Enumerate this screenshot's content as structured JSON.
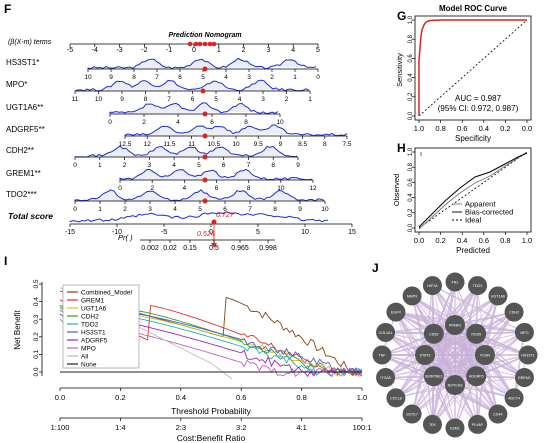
{
  "panels": {
    "F": "F",
    "G": "G",
    "H": "H",
    "I": "I",
    "J": "J"
  },
  "nomogram": {
    "title": "Prediction Nomogram",
    "points_label": "(β(X-m) terms",
    "points_ticks": [
      "-5",
      "-4",
      "-3",
      "-2",
      "-1",
      "0",
      "1",
      "2",
      "3",
      "4",
      "5"
    ],
    "variables": [
      {
        "name": "HS3ST1*",
        "ticks": [
          "10",
          "9",
          "8",
          "7",
          "6",
          "5",
          "4",
          "3",
          "2",
          "1",
          "0"
        ]
      },
      {
        "name": "MPO*",
        "ticks": [
          "11",
          "10",
          "9",
          "8",
          "7",
          "6",
          "5",
          "4",
          "3",
          "2",
          "1"
        ]
      },
      {
        "name": "UGT1A6**",
        "ticks": [
          "0",
          "2",
          "4",
          "6",
          "8",
          "10"
        ]
      },
      {
        "name": "ADGRF5**",
        "ticks": [
          "12.5",
          "12",
          "11.5",
          "11",
          "10.5",
          "10",
          "9.5",
          "9",
          "8.5",
          "8",
          "7.5"
        ]
      },
      {
        "name": "CDH2**",
        "ticks": [
          "0",
          "1",
          "2",
          "3",
          "4",
          "5",
          "6",
          "7",
          "8",
          "9"
        ]
      },
      {
        "name": "GREM1**",
        "ticks": [
          "0",
          "2",
          "4",
          "6",
          "8",
          "10",
          "12"
        ]
      },
      {
        "name": "TDO2***",
        "ticks": [
          "0",
          "1",
          "2",
          "3",
          "4",
          "5",
          "6",
          "7",
          "8",
          "9",
          "10"
        ]
      }
    ],
    "total_label": "Total score",
    "total_ticks": [
      "-15",
      "-10",
      "-5",
      "0",
      "5",
      "10",
      "15"
    ],
    "total_value": "0.727",
    "pr_label": "Pr( )",
    "pr_ticks": [
      "0.002",
      "0.02",
      "0.15",
      "0.5",
      "0.965",
      "0.998"
    ],
    "pr_value": "0.524"
  },
  "roc": {
    "title": "Model ROC Curve",
    "ylabel": "Sensitivity",
    "xlabel": "Specificity",
    "yticks": [
      "0.0",
      "0.2",
      "0.4",
      "0.6",
      "0.8",
      "1.0"
    ],
    "xticks": [
      "1.0",
      "0.8",
      "0.6",
      "0.4",
      "0.2",
      "0.0"
    ],
    "auc": "AUC = 0.987",
    "ci": "(95% CI: 0.972, 0.987)"
  },
  "calibration": {
    "ylabel": "Observed",
    "xlabel": "Predicted",
    "yticks": [
      "0.0",
      "0.2",
      "0.4",
      "0.6",
      "0.8",
      "1.0"
    ],
    "xticks": [
      "0.0",
      "0.2",
      "0.4",
      "0.6",
      "0.8",
      "1.0"
    ],
    "legend": [
      "Apparent",
      "Bias-corrected",
      "Ideal"
    ]
  },
  "dca": {
    "ylabel": "Net Benefit",
    "xlabel": "Threshold Probability",
    "cost_label": "Cost:Benefit Ratio",
    "yticks": [
      "0.0",
      "0.1",
      "0.2",
      "0.3",
      "0.4",
      "0.5"
    ],
    "xticks": [
      "0.0",
      "0.2",
      "0.4",
      "0.6",
      "0.8",
      "1.0"
    ],
    "cost_ticks": [
      "1:100",
      "1:4",
      "2:3",
      "3:2",
      "4:1",
      "100:1"
    ],
    "legend": [
      "Combined_Model",
      "GREM1",
      "UGT1A6",
      "CDH2",
      "TDO2",
      "HS3ST1",
      "ADGRF5",
      "MPO",
      "All",
      "None"
    ],
    "colors": [
      "#8b4513",
      "#e03030",
      "#d4c020",
      "#30a030",
      "#20b0c0",
      "#4060d0",
      "#a020c0",
      "#c060c0",
      "#bbbbbb",
      "#222222"
    ]
  },
  "network": {
    "nodes": [
      "PPARG",
      "RGS5",
      "VCAN",
      "ADGRF5",
      "NOTCH3",
      "SERPINE1",
      "STAT3",
      "CD93",
      "FN1",
      "TDO2",
      "UGT1A6",
      "CDH2",
      "MPO",
      "HS3ST1",
      "GREM1",
      "ADCY4",
      "CD44",
      "PLVAP",
      "ESM1",
      "TEK",
      "SOX17",
      "CXCL8",
      "ITGA5",
      "TNF",
      "COL1A1",
      "EGFR",
      "MMP9",
      "HIF1A"
    ]
  },
  "colors": {
    "nomo_curve": "#1a2fd0",
    "highlight": "#e02020",
    "roc": "#e02020",
    "node": "#555555",
    "edge": "#c8b0d8"
  }
}
